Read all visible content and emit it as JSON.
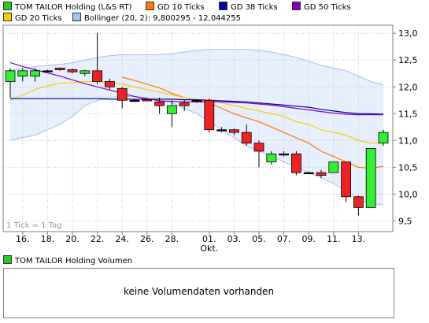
{
  "legend": [
    {
      "label": "TOM TAILOR Holding (L&S RT)",
      "color": "#22cc22"
    },
    {
      "label": "GD 10 Ticks",
      "color": "#ff7a00"
    },
    {
      "label": "GD 38 Ticks",
      "color": "#0000aa"
    },
    {
      "label": "GD 50 Ticks",
      "color": "#8800bb"
    },
    {
      "label": "GD 20 Ticks",
      "color": "#ffcc00"
    },
    {
      "label": "Bollinger (20, 2): 9,800295 - 12,044255",
      "color": "#a6c3ee"
    }
  ],
  "tick_note": "1 Tick = 1 Tag",
  "volume": {
    "legend_label": "TOM TAILOR Holding Volumen",
    "legend_color": "#22cc22",
    "message": "keine Volumendaten vorhanden"
  },
  "chart_data": {
    "type": "candlestick",
    "title": "",
    "xlabel": "",
    "ylabel": "",
    "ylim": [
      9.3,
      13.15
    ],
    "y_ticks": [
      "9,5",
      "10,0",
      "10,5",
      "11,0",
      "11,5",
      "12,0",
      "12,5",
      "13,0"
    ],
    "y_tick_values": [
      9.5,
      10.0,
      10.5,
      11.0,
      11.5,
      12.0,
      12.5,
      13.0
    ],
    "x_ticks": [
      {
        "label": "16.",
        "i": 1
      },
      {
        "label": "18.",
        "i": 3
      },
      {
        "label": "20.",
        "i": 5
      },
      {
        "label": "22.",
        "i": 7
      },
      {
        "label": "24.",
        "i": 9
      },
      {
        "label": "26.",
        "i": 11
      },
      {
        "label": "28.",
        "i": 13
      },
      {
        "label": "01.",
        "i": 16
      },
      {
        "label": "03.",
        "i": 18
      },
      {
        "label": "05.",
        "i": 20
      },
      {
        "label": "07.",
        "i": 22
      },
      {
        "label": "09.",
        "i": 24
      },
      {
        "label": "11.",
        "i": 26
      },
      {
        "label": "13.",
        "i": 28
      }
    ],
    "month_label": {
      "label": "Okt.",
      "i": 16
    },
    "grid": true,
    "candles": [
      {
        "o": 12.1,
        "c": 12.3,
        "h": 12.35,
        "l": 11.8
      },
      {
        "o": 12.2,
        "c": 12.3,
        "h": 12.35,
        "l": 12.1
      },
      {
        "o": 12.2,
        "c": 12.3,
        "h": 12.35,
        "l": 12.1
      },
      {
        "o": 12.3,
        "c": 12.3,
        "h": 12.32,
        "l": 12.28
      },
      {
        "o": 12.35,
        "c": 12.32,
        "h": 12.36,
        "l": 12.3
      },
      {
        "o": 12.32,
        "c": 12.28,
        "h": 12.34,
        "l": 12.25
      },
      {
        "o": 12.25,
        "c": 12.3,
        "h": 12.32,
        "l": 12.2
      },
      {
        "o": 12.3,
        "c": 12.1,
        "h": 13.0,
        "l": 12.05
      },
      {
        "o": 12.1,
        "c": 12.0,
        "h": 12.15,
        "l": 11.95
      },
      {
        "o": 11.97,
        "c": 11.75,
        "h": 12.0,
        "l": 11.6
      },
      {
        "o": 11.75,
        "c": 11.75,
        "h": 11.77,
        "l": 11.73
      },
      {
        "o": 11.76,
        "c": 11.75,
        "h": 11.78,
        "l": 11.73
      },
      {
        "o": 11.72,
        "c": 11.65,
        "h": 11.8,
        "l": 11.5
      },
      {
        "o": 11.5,
        "c": 11.65,
        "h": 11.75,
        "l": 11.25
      },
      {
        "o": 11.7,
        "c": 11.65,
        "h": 11.75,
        "l": 11.55
      },
      {
        "o": 11.75,
        "c": 11.75,
        "h": 11.77,
        "l": 11.7
      },
      {
        "o": 11.75,
        "c": 11.2,
        "h": 11.78,
        "l": 11.15
      },
      {
        "o": 11.2,
        "c": 11.2,
        "h": 11.25,
        "l": 11.15
      },
      {
        "o": 11.2,
        "c": 11.15,
        "h": 11.22,
        "l": 11.1
      },
      {
        "o": 11.15,
        "c": 10.95,
        "h": 11.3,
        "l": 10.9
      },
      {
        "o": 10.95,
        "c": 10.8,
        "h": 11.0,
        "l": 10.5
      },
      {
        "o": 10.6,
        "c": 10.75,
        "h": 10.8,
        "l": 10.55
      },
      {
        "o": 10.75,
        "c": 10.75,
        "h": 10.8,
        "l": 10.7
      },
      {
        "o": 10.75,
        "c": 10.4,
        "h": 10.8,
        "l": 10.35
      },
      {
        "o": 10.4,
        "c": 10.4,
        "h": 10.42,
        "l": 10.38
      },
      {
        "o": 10.4,
        "c": 10.35,
        "h": 10.45,
        "l": 10.3
      },
      {
        "o": 10.4,
        "c": 10.6,
        "h": 10.6,
        "l": 10.4
      },
      {
        "o": 10.6,
        "c": 9.95,
        "h": 10.6,
        "l": 9.85
      },
      {
        "o": 9.95,
        "c": 9.75,
        "h": 9.97,
        "l": 9.6
      },
      {
        "o": 9.75,
        "c": 10.85,
        "h": 10.85,
        "l": 9.75
      },
      {
        "o": 10.95,
        "c": 11.15,
        "h": 11.2,
        "l": 10.9
      }
    ],
    "series": [
      {
        "name": "GD 10 Ticks",
        "color": "#ff7a00",
        "values": [
          null,
          null,
          null,
          null,
          null,
          null,
          null,
          null,
          null,
          12.18,
          12.12,
          12.05,
          11.98,
          11.88,
          11.8,
          11.75,
          11.7,
          11.6,
          11.5,
          11.42,
          11.35,
          11.25,
          11.15,
          11.05,
          10.95,
          10.8,
          10.7,
          10.6,
          10.5,
          10.48,
          10.52
        ]
      },
      {
        "name": "GD 20 Ticks",
        "color": "#ffcc00",
        "values": [
          11.75,
          11.85,
          11.95,
          12.02,
          12.07,
          12.08,
          12.1,
          12.1,
          12.08,
          12.05,
          12.0,
          11.95,
          11.9,
          11.85,
          11.8,
          11.76,
          11.75,
          11.7,
          11.65,
          11.6,
          11.55,
          11.5,
          11.45,
          11.35,
          11.3,
          11.2,
          11.15,
          11.1,
          11.0,
          10.95,
          10.95
        ]
      },
      {
        "name": "GD 38 Ticks",
        "color": "#0000aa",
        "values": [
          11.78,
          11.78,
          11.78,
          11.78,
          11.78,
          11.78,
          11.78,
          11.78,
          11.77,
          11.77,
          11.77,
          11.77,
          11.77,
          11.77,
          11.76,
          11.76,
          11.75,
          11.74,
          11.73,
          11.72,
          11.7,
          11.68,
          11.66,
          11.64,
          11.62,
          11.58,
          11.55,
          11.52,
          11.5,
          11.5,
          11.49
        ]
      },
      {
        "name": "GD 50 Ticks",
        "color": "#8800bb",
        "values": [
          12.45,
          12.38,
          12.32,
          12.26,
          12.2,
          12.13,
          12.06,
          12.0,
          11.94,
          11.88,
          11.82,
          11.78,
          11.74,
          11.73,
          11.72,
          11.72,
          11.72,
          11.72,
          11.71,
          11.7,
          11.68,
          11.66,
          11.63,
          11.6,
          11.57,
          11.54,
          11.51,
          11.49,
          11.48,
          11.48,
          11.48
        ]
      }
    ],
    "bollinger": {
      "upper": [
        12.3,
        12.35,
        12.38,
        12.4,
        12.42,
        12.45,
        12.5,
        12.55,
        12.58,
        12.6,
        12.6,
        12.6,
        12.6,
        12.62,
        12.65,
        12.68,
        12.7,
        12.7,
        12.7,
        12.7,
        12.68,
        12.65,
        12.6,
        12.55,
        12.48,
        12.4,
        12.35,
        12.3,
        12.2,
        12.1,
        12.04
      ],
      "lower": [
        11.0,
        11.05,
        11.1,
        11.2,
        11.3,
        11.45,
        11.65,
        11.75,
        11.8,
        11.82,
        11.82,
        11.8,
        11.75,
        11.7,
        11.6,
        11.5,
        11.35,
        11.2,
        11.05,
        10.9,
        10.8,
        10.7,
        10.6,
        10.5,
        10.4,
        10.3,
        10.2,
        10.05,
        9.9,
        9.82,
        9.8
      ]
    }
  }
}
